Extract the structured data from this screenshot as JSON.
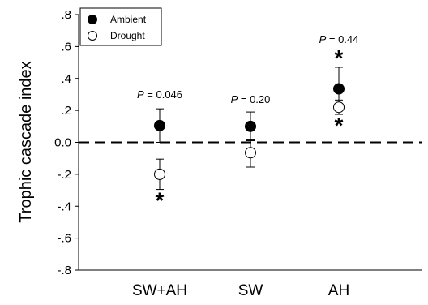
{
  "chart_data": {
    "type": "scatter",
    "title": "",
    "xlabel": "",
    "ylabel": "Trophic cascade index",
    "ylim": [
      -0.8,
      0.8
    ],
    "yticks": [
      ".8",
      ".6",
      ".4",
      ".2",
      "0.0",
      "-.2",
      "-.4",
      "-.6",
      "-.8"
    ],
    "categories": [
      "SW+AH",
      "SW",
      "AH"
    ],
    "reference_line": {
      "y": 0,
      "style": "dashed"
    },
    "legend": {
      "placement": "top-left",
      "entries": [
        "Ambient",
        "Drought"
      ]
    },
    "series": [
      {
        "name": "Ambient",
        "marker": "filled-circle",
        "values": [
          0.105,
          0.1,
          0.335
        ],
        "error_low": [
          0.0,
          0.01,
          0.23
        ],
        "error_high": [
          0.21,
          0.19,
          0.47
        ]
      },
      {
        "name": "Drought",
        "marker": "open-circle",
        "values": [
          -0.2,
          -0.065,
          0.22
        ],
        "error_low": [
          -0.295,
          -0.155,
          0.175
        ],
        "error_high": [
          -0.105,
          0.02,
          0.265
        ]
      }
    ],
    "annotations": [
      {
        "category": "SW+AH",
        "p_prefix": "P",
        "p_text": " = 0.046"
      },
      {
        "category": "SW",
        "p_prefix": "P",
        "p_text": " = 0.20"
      },
      {
        "category": "AH",
        "p_prefix": "P",
        "p_text": " = 0.44"
      }
    ],
    "significance": [
      {
        "category": "SW+AH",
        "series": "Drought",
        "symbol": "*",
        "position": "below"
      },
      {
        "category": "AH",
        "series": "Ambient",
        "symbol": "*",
        "position": "above"
      },
      {
        "category": "AH",
        "series": "Drought",
        "symbol": "*",
        "position": "below"
      }
    ]
  }
}
